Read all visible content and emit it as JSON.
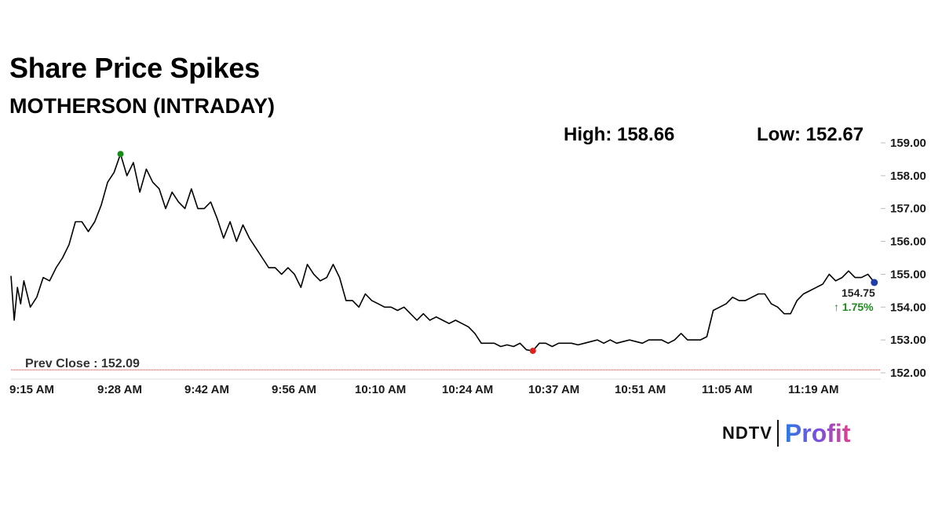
{
  "header": {
    "title": "Share Price Spikes",
    "subtitle": "MOTHERSON (INTRADAY)",
    "high_label": "High: 158.66",
    "low_label": "Low: 152.67"
  },
  "logo": {
    "left": "NDTV",
    "right": "Profit"
  },
  "chart_data": {
    "type": "line",
    "title": "Share Price Spikes",
    "subtitle": "MOTHERSON (INTRADAY)",
    "xlabel": "",
    "ylabel": "",
    "x_ticks": [
      "9:15 AM",
      "9:28 AM",
      "9:42 AM",
      "9:56 AM",
      "10:10 AM",
      "10:24 AM",
      "10:37 AM",
      "10:51 AM",
      "11:05 AM",
      "11:19 AM"
    ],
    "y_ticks": [
      "152.00",
      "153.00",
      "154.00",
      "155.00",
      "156.00",
      "157.00",
      "158.00",
      "159.00"
    ],
    "ylim": [
      152.0,
      159.0
    ],
    "xlim_minutes": [
      0,
      135
    ],
    "grid": false,
    "high": 158.66,
    "low": 152.67,
    "prev_close": 152.09,
    "prev_close_label": "Prev Close : 152.09",
    "last_price": "154.75",
    "change_pct": "1.75%",
    "colors": {
      "line": "#000000",
      "high_marker": "#1a8a1a",
      "low_marker": "#e0201c",
      "last_marker": "#1f3ea8",
      "prev_close_line": "#d04040",
      "change_positive": "#1f8a1f"
    },
    "series": [
      {
        "x_minutes": [
          0,
          0.5,
          1,
          1.5,
          2,
          3,
          4,
          5,
          6,
          7,
          8,
          9,
          10,
          11,
          12,
          13,
          14,
          15,
          16,
          17,
          18,
          19,
          20,
          21,
          22,
          23,
          24,
          25,
          26,
          27,
          28,
          29,
          30,
          31,
          32,
          33,
          34,
          35,
          36,
          37,
          38,
          39,
          40,
          41,
          42,
          43,
          44,
          45,
          46,
          47,
          48,
          49,
          50,
          51,
          52,
          53,
          54,
          55,
          56,
          57,
          58,
          59,
          60,
          61,
          62,
          63,
          64,
          65,
          66,
          67,
          68,
          69,
          70,
          71,
          72,
          73,
          74,
          75,
          76,
          77,
          78,
          79,
          80,
          81,
          82,
          83,
          84,
          85,
          86,
          87,
          88,
          89,
          90,
          91,
          92,
          93,
          94,
          95,
          96,
          97,
          98,
          99,
          100,
          101,
          102,
          103,
          104,
          105,
          106,
          107,
          108,
          109,
          110,
          111,
          112,
          113,
          114,
          115,
          116,
          117,
          118,
          119,
          120,
          121,
          122,
          123,
          124,
          125,
          126,
          127,
          128,
          129,
          130,
          131,
          132,
          133,
          134
        ],
        "values": [
          154.95,
          153.6,
          154.6,
          154.1,
          154.8,
          154.0,
          154.3,
          154.9,
          154.8,
          155.2,
          155.5,
          155.9,
          156.6,
          156.6,
          156.3,
          156.6,
          157.1,
          157.8,
          158.1,
          158.66,
          158.0,
          158.4,
          157.5,
          158.2,
          157.8,
          157.6,
          157.0,
          157.5,
          157.2,
          157.0,
          157.6,
          157.0,
          157.0,
          157.2,
          156.7,
          156.1,
          156.6,
          156.0,
          156.5,
          156.1,
          155.8,
          155.5,
          155.2,
          155.2,
          155.0,
          155.2,
          155.0,
          154.6,
          155.3,
          155.0,
          154.8,
          154.9,
          155.3,
          154.9,
          154.2,
          154.2,
          154.0,
          154.4,
          154.2,
          154.1,
          154.0,
          154.0,
          153.9,
          154.0,
          153.8,
          153.6,
          153.8,
          153.6,
          153.7,
          153.6,
          153.5,
          153.6,
          153.5,
          153.4,
          153.2,
          152.9,
          152.9,
          152.9,
          152.8,
          152.85,
          152.8,
          152.9,
          152.7,
          152.67,
          152.9,
          152.9,
          152.8,
          152.9,
          152.9,
          152.9,
          152.85,
          152.9,
          152.95,
          153.0,
          152.9,
          153.0,
          152.9,
          152.95,
          153.0,
          152.95,
          152.9,
          153.0,
          153.0,
          153.0,
          152.9,
          153.0,
          153.2,
          153.0,
          153.0,
          153.0,
          153.1,
          153.9,
          154.0,
          154.1,
          154.3,
          154.2,
          154.2,
          154.3,
          154.4,
          154.4,
          154.1,
          154.0,
          153.8,
          153.8,
          154.2,
          154.4,
          154.5,
          154.6,
          154.7,
          155.0,
          154.8,
          154.9,
          155.1,
          154.9,
          154.9,
          155.0,
          154.75
        ]
      }
    ]
  }
}
